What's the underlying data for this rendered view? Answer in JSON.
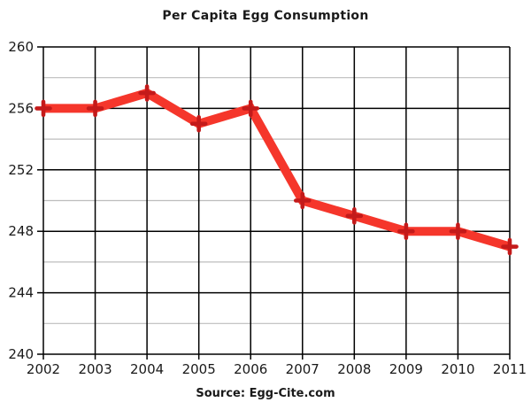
{
  "title": "Per Capita Egg Consumption",
  "source": "Source: Egg-Cite.com",
  "colors": {
    "background": "#ffffff",
    "line": "#f5362b",
    "marker": "#c41a1a",
    "major_grid": "#000000",
    "minor_grid": "#bdbdbd",
    "text": "#1a1a1a"
  },
  "chart_data": {
    "type": "line",
    "title": "Per Capita Egg Consumption",
    "source": "Source: Egg-Cite.com",
    "categories": [
      "2002",
      "2003",
      "2004",
      "2005",
      "2006",
      "2007",
      "2008",
      "2009",
      "2010",
      "2011"
    ],
    "series": [
      {
        "name": "Per Capita Egg Consumption",
        "values": [
          256,
          256,
          257,
          255,
          256,
          250,
          249,
          248,
          248,
          247
        ]
      }
    ],
    "xlabel": "",
    "ylabel": "",
    "ylim": [
      240,
      260
    ],
    "ytick_major": [
      240,
      244,
      248,
      252,
      256,
      260
    ],
    "ytick_minor": [
      242,
      246,
      250,
      254,
      258
    ],
    "grid": "major-black-minor-gray",
    "legend": false,
    "marker": "plus",
    "line_width": 10
  }
}
